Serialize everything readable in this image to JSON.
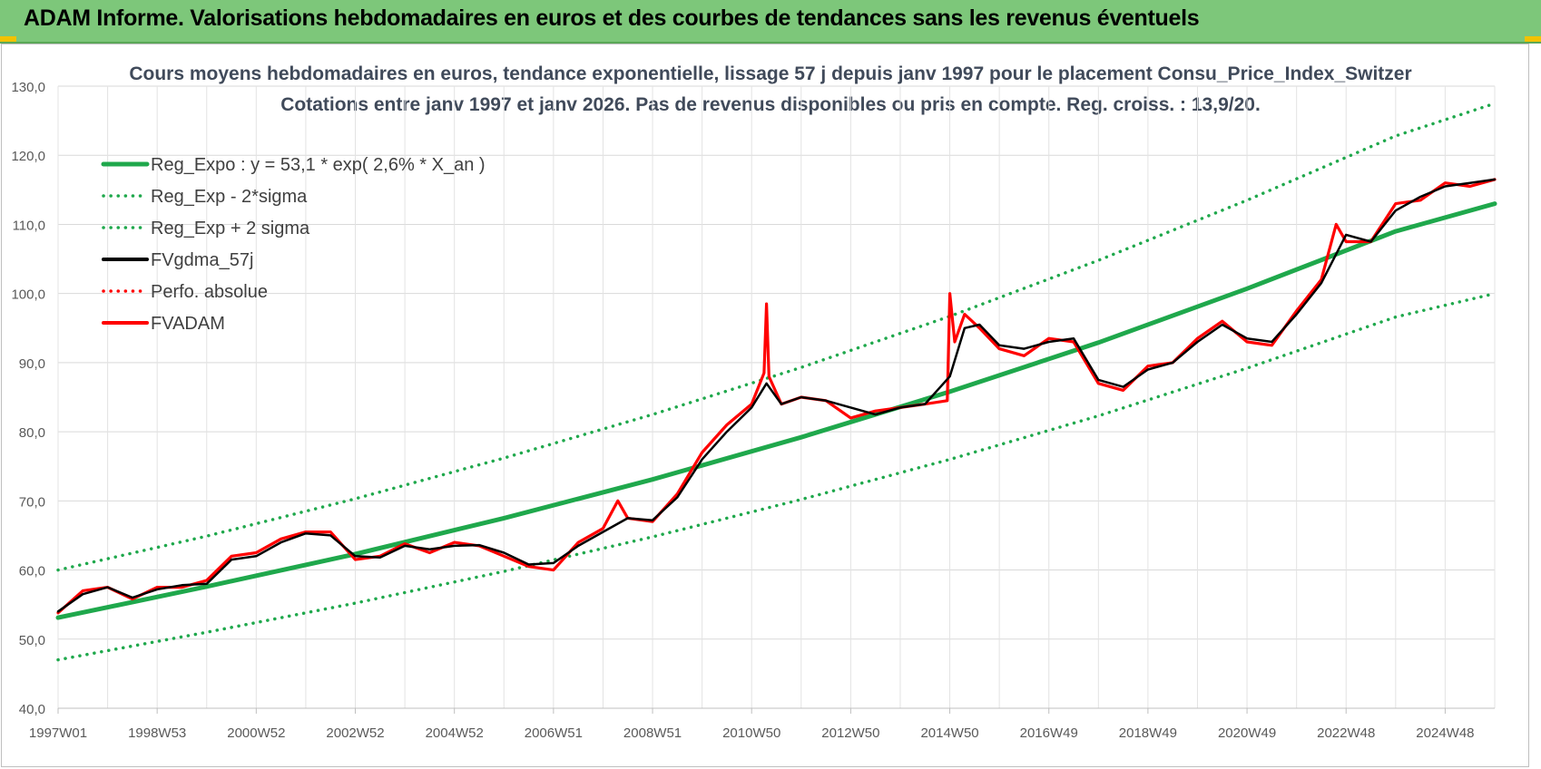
{
  "banner": {
    "title": "ADAM Informe. Valorisations hebdomadaires en euros et des courbes de tendances sans les revenus éventuels"
  },
  "chart_data": {
    "type": "line",
    "title": "Cours moyens hebdomadaires en euros, tendance exponentielle, lissage 57 j depuis janv 1997  pour le placement Consu_Price_Index_Switzer",
    "subtitle": "Cotations entre janv 1997 et janv 2026. Pas de revenus disponibles ou pris en compte. Reg. croiss. : 13,9/20.",
    "xlabel": "",
    "ylabel": "",
    "ylim": [
      40,
      130
    ],
    "xlim": [
      1997.0,
      2026.0
    ],
    "y_ticks": [
      "40,0",
      "50,0",
      "60,0",
      "70,0",
      "80,0",
      "90,0",
      "100,0",
      "110,0",
      "120,0",
      "130,0"
    ],
    "x_tick_labels": [
      "1997W01",
      "1998W53",
      "2000W52",
      "2002W52",
      "2004W52",
      "2006W51",
      "2008W51",
      "2010W50",
      "2012W50",
      "2014W50",
      "2016W49",
      "2018W49",
      "2020W49",
      "2022W48",
      "2024W48"
    ],
    "x_tick_years": [
      1997.0,
      1999.0,
      2001.0,
      2003.0,
      2005.0,
      2007.0,
      2009.0,
      2011.0,
      2013.0,
      2015.0,
      2017.0,
      2019.0,
      2021.0,
      2023.0,
      2025.0
    ],
    "grid": true,
    "legend_position": "top-left",
    "series": [
      {
        "name": "Reg_Expo : y = 53,1 * exp( 2,6% *  X_an )",
        "color": "#1fa84c",
        "style": "solid",
        "x": [
          1997,
          2000,
          2003,
          2006,
          2009,
          2012,
          2015,
          2018,
          2021,
          2024,
          2026
        ],
        "y": [
          53.1,
          57.6,
          62.3,
          67.5,
          73.1,
          79.2,
          85.8,
          92.9,
          100.7,
          109.0,
          113.0
        ]
      },
      {
        "name": "Reg_Exp - 2*sigma",
        "color": "#1fa84c",
        "style": "dotted",
        "x": [
          1997,
          2000,
          2003,
          2006,
          2009,
          2012,
          2015,
          2018,
          2021,
          2024,
          2026
        ],
        "y": [
          47.0,
          51.0,
          55.2,
          59.8,
          64.8,
          70.2,
          76.0,
          82.3,
          89.2,
          96.6,
          100.0
        ]
      },
      {
        "name": "Reg_Exp + 2 sigma",
        "color": "#1fa84c",
        "style": "dotted",
        "x": [
          1997,
          2000,
          2003,
          2006,
          2009,
          2012,
          2015,
          2018,
          2021,
          2024,
          2026
        ],
        "y": [
          60.0,
          64.9,
          70.3,
          76.2,
          82.5,
          89.3,
          96.7,
          104.8,
          113.5,
          122.8,
          127.5
        ]
      },
      {
        "name": "FVgdma_57j",
        "color": "#000000",
        "style": "solid",
        "x": [
          1997.0,
          1997.5,
          1998.0,
          1998.5,
          1999.0,
          1999.5,
          2000.0,
          2000.5,
          2001.0,
          2001.5,
          2002.0,
          2002.5,
          2003.0,
          2003.5,
          2004.0,
          2004.5,
          2005.0,
          2005.5,
          2006.0,
          2006.5,
          2007.0,
          2007.5,
          2008.0,
          2008.5,
          2009.0,
          2009.5,
          2010.0,
          2010.5,
          2011.0,
          2011.3,
          2011.6,
          2012.0,
          2012.5,
          2013.0,
          2013.5,
          2014.0,
          2014.5,
          2015.0,
          2015.3,
          2015.6,
          2016.0,
          2016.5,
          2017.0,
          2017.5,
          2018.0,
          2018.5,
          2019.0,
          2019.5,
          2020.0,
          2020.5,
          2021.0,
          2021.5,
          2022.0,
          2022.5,
          2023.0,
          2023.5,
          2024.0,
          2024.5,
          2025.0,
          2025.5,
          2026.0
        ],
        "y": [
          54.0,
          56.5,
          57.5,
          56.0,
          57.2,
          57.8,
          58.0,
          61.5,
          62.0,
          64.0,
          65.3,
          65.0,
          62.0,
          61.8,
          63.5,
          63.0,
          63.5,
          63.6,
          62.5,
          60.8,
          61.0,
          63.5,
          65.5,
          67.5,
          67.2,
          70.5,
          76.0,
          80.0,
          83.5,
          87.0,
          84.0,
          85.0,
          84.5,
          83.5,
          82.5,
          83.5,
          84.0,
          88.0,
          95.0,
          95.5,
          92.5,
          92.0,
          93.0,
          93.5,
          87.5,
          86.5,
          89.0,
          90.0,
          93.0,
          95.5,
          93.5,
          93.0,
          97.0,
          101.5,
          108.5,
          107.5,
          112.0,
          114.0,
          115.5,
          116.0,
          116.5
        ]
      },
      {
        "name": "Perfo. absolue",
        "color": "#ff0000",
        "style": "dotted",
        "x": [],
        "y": []
      },
      {
        "name": "FVADAM",
        "color": "#ff0000",
        "style": "solid",
        "x": [
          1997.0,
          1997.5,
          1998.0,
          1998.5,
          1999.0,
          1999.5,
          2000.0,
          2000.5,
          2001.0,
          2001.5,
          2002.0,
          2002.5,
          2003.0,
          2003.5,
          2004.0,
          2004.5,
          2005.0,
          2005.5,
          2006.0,
          2006.5,
          2007.0,
          2007.5,
          2008.0,
          2008.3,
          2008.5,
          2009.0,
          2009.5,
          2010.0,
          2010.5,
          2011.0,
          2011.25,
          2011.3,
          2011.35,
          2011.6,
          2012.0,
          2012.5,
          2013.0,
          2013.5,
          2014.0,
          2014.5,
          2014.95,
          2015.0,
          2015.1,
          2015.3,
          2015.6,
          2016.0,
          2016.5,
          2017.0,
          2017.5,
          2018.0,
          2018.5,
          2019.0,
          2019.5,
          2020.0,
          2020.5,
          2021.0,
          2021.5,
          2022.0,
          2022.5,
          2022.8,
          2023.0,
          2023.5,
          2024.0,
          2024.5,
          2025.0,
          2025.5,
          2026.0
        ],
        "y": [
          53.8,
          57.0,
          57.5,
          55.8,
          57.5,
          57.5,
          58.5,
          62.0,
          62.5,
          64.5,
          65.5,
          65.5,
          61.5,
          62.0,
          63.8,
          62.5,
          64.0,
          63.5,
          62.0,
          60.5,
          60.0,
          64.0,
          66.0,
          70.0,
          67.5,
          67.0,
          71.0,
          77.0,
          81.0,
          84.0,
          88.5,
          98.5,
          88.0,
          84.0,
          85.0,
          84.5,
          82.0,
          83.0,
          83.5,
          84.0,
          84.5,
          100.0,
          93.0,
          97.0,
          95.0,
          92.0,
          91.0,
          93.5,
          93.0,
          87.0,
          86.0,
          89.5,
          90.0,
          93.5,
          96.0,
          93.0,
          92.5,
          97.5,
          102.0,
          110.0,
          107.5,
          107.5,
          113.0,
          113.5,
          116.0,
          115.5,
          116.5
        ]
      }
    ]
  }
}
